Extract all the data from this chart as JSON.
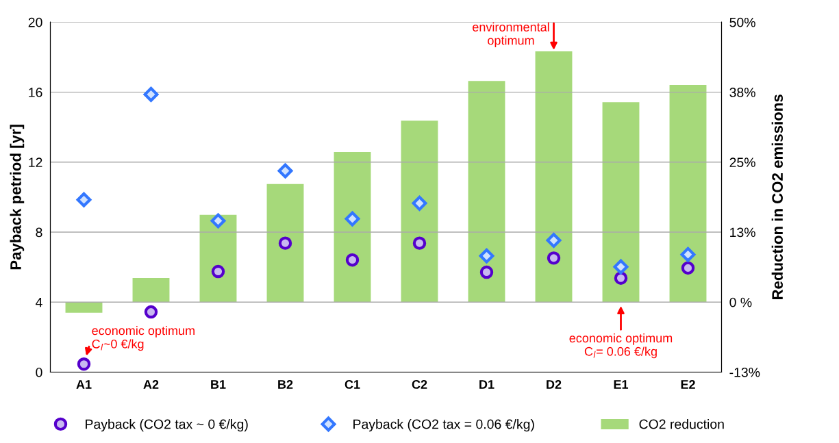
{
  "chart_data": {
    "type": "scatter",
    "categories": [
      "A1",
      "A2",
      "B1",
      "B2",
      "C1",
      "C2",
      "D1",
      "D2",
      "E1",
      "E2"
    ],
    "ylabel": "Payback petriod [yr]",
    "y2label": "Reduction in CO2 emissions",
    "ylim": [
      0,
      20
    ],
    "yticks": [
      0,
      4,
      8,
      12,
      16,
      20
    ],
    "y2lim": [
      -12.5,
      50
    ],
    "y2ticks": [
      {
        "value": -12.5,
        "label": "-13%"
      },
      {
        "value": 0,
        "label": "0 %"
      },
      {
        "value": 12.5,
        "label": "13%"
      },
      {
        "value": 25,
        "label": "25%"
      },
      {
        "value": 37.5,
        "label": "38%"
      },
      {
        "value": 50,
        "label": "50%"
      }
    ],
    "series": [
      {
        "name": "Payback (CO2 tax ~ 0 €/kg)",
        "marker": "circle",
        "color": "#5500cc",
        "values": [
          0.46,
          3.44,
          5.75,
          7.37,
          6.41,
          7.37,
          5.71,
          6.52,
          5.37,
          5.95
        ]
      },
      {
        "name": "Payback (CO2 tax = 0.06 €/kg)",
        "marker": "diamond",
        "color": "#3377ff",
        "values": [
          9.85,
          15.87,
          8.65,
          11.5,
          8.76,
          9.65,
          6.64,
          7.53,
          6.02,
          6.72
        ]
      },
      {
        "name": "CO2 reduction",
        "type": "bar",
        "axis": "y2",
        "color": "#a6d97a",
        "values": [
          -1.9,
          4.3,
          15.6,
          21.1,
          26.8,
          32.4,
          39.5,
          44.8,
          35.7,
          38.8
        ]
      }
    ],
    "annotations": [
      {
        "text": "environmental\noptimum",
        "x": "D2",
        "y": 18.3
      },
      {
        "text": "economic optimum\nC$_{l}$~0 €/kg",
        "x": "A1",
        "y": 0.46
      },
      {
        "text": "economic optimum\nC$_{l}$= 0.06 €/kg",
        "x": "E1",
        "y": 4
      }
    ],
    "grid": "y",
    "legend": "bottom"
  }
}
